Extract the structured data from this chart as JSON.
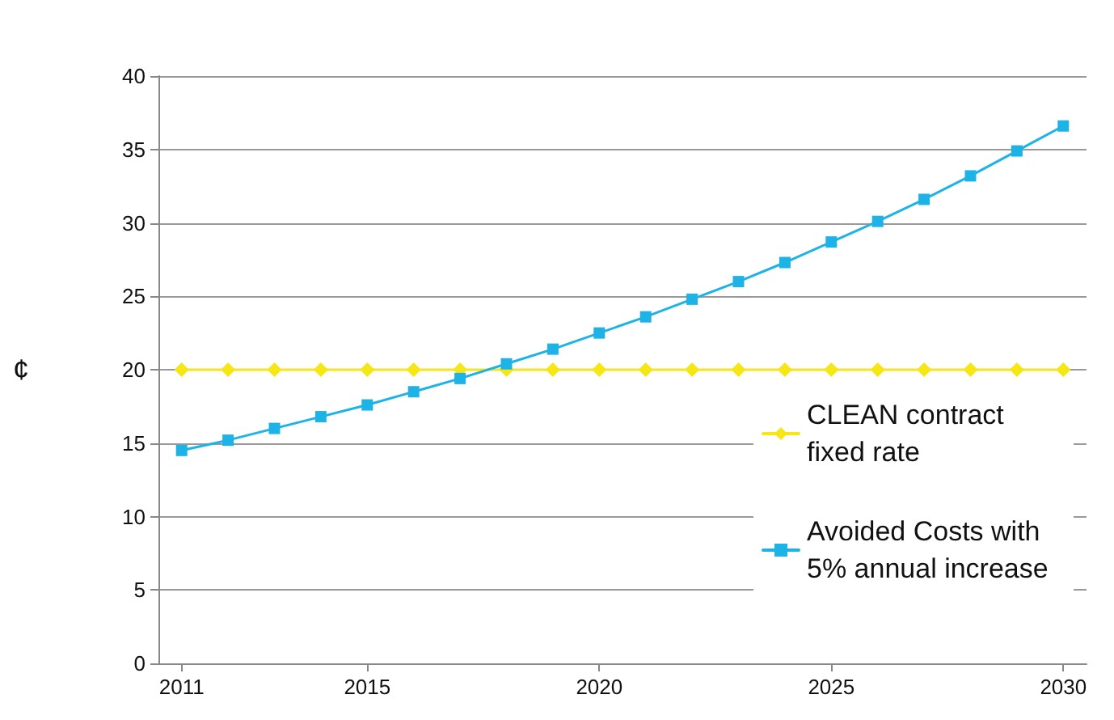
{
  "chart_data": {
    "type": "line",
    "ylabel": "¢",
    "x": [
      2011,
      2012,
      2013,
      2014,
      2015,
      2016,
      2017,
      2018,
      2019,
      2020,
      2021,
      2022,
      2023,
      2024,
      2025,
      2026,
      2027,
      2028,
      2029,
      2030
    ],
    "series": [
      {
        "name": "CLEAN contract fixed rate",
        "color": "#f5e614",
        "marker": "diamond",
        "values": [
          20,
          20,
          20,
          20,
          20,
          20,
          20,
          20,
          20,
          20,
          20,
          20,
          20,
          20,
          20,
          20,
          20,
          20,
          20,
          20
        ]
      },
      {
        "name": "Avoided Costs with 5% annual increase",
        "color": "#1eb3e6",
        "marker": "square",
        "values": [
          14.5,
          15.2,
          16.0,
          16.8,
          17.6,
          18.5,
          19.4,
          20.4,
          21.4,
          22.5,
          23.6,
          24.8,
          26.0,
          27.3,
          28.7,
          30.1,
          31.6,
          33.2,
          34.9,
          36.6
        ]
      }
    ],
    "xlim": [
      2010.5,
      2030.5
    ],
    "xticks": [
      2011,
      2015,
      2020,
      2025,
      2030
    ],
    "ylim": [
      0,
      40
    ],
    "yticks": [
      0,
      5,
      10,
      15,
      20,
      25,
      30,
      35,
      40
    ],
    "grid": "y",
    "legend": "right",
    "line_style": "solid"
  }
}
